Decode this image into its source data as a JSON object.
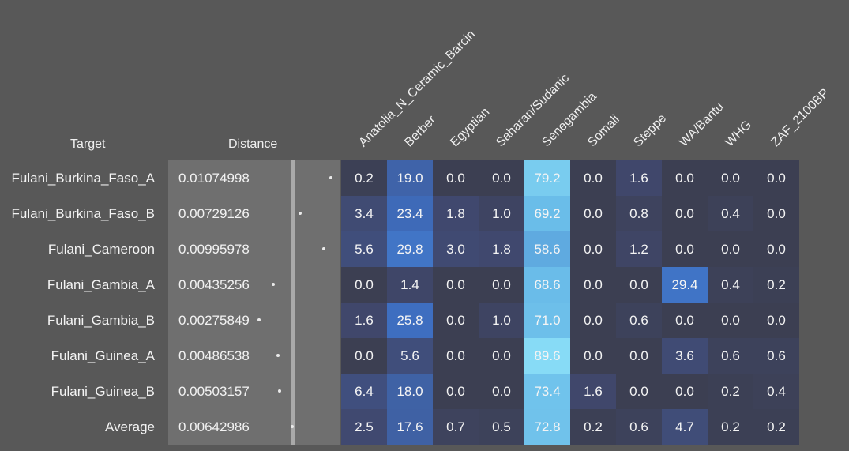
{
  "chart_data": {
    "type": "heatmap",
    "title": "",
    "row_header": "Target",
    "distance_header": "Distance",
    "columns": [
      "Anatolia_N_Ceramic_Barcin",
      "Berber",
      "Egyptian",
      "Saharan/Sudanic",
      "Senegambia",
      "Somali",
      "Steppe",
      "WA/Bantu",
      "WHG",
      "ZAF_2100BP"
    ],
    "rows": [
      {
        "target": "Fulani_Burkina_Faso_A",
        "distance_label": "0.01074998",
        "distance": 0.01074998,
        "values": [
          "0.2",
          "19.0",
          "0.0",
          "0.0",
          "79.2",
          "0.0",
          "1.6",
          "0.0",
          "0.0",
          "0.0"
        ]
      },
      {
        "target": "Fulani_Burkina_Faso_B",
        "distance_label": "0.00729126",
        "distance": 0.00729126,
        "values": [
          "3.4",
          "23.4",
          "1.8",
          "1.0",
          "69.2",
          "0.0",
          "0.8",
          "0.0",
          "0.4",
          "0.0"
        ]
      },
      {
        "target": "Fulani_Cameroon",
        "distance_label": "0.00995978",
        "distance": 0.00995978,
        "values": [
          "5.6",
          "29.8",
          "3.0",
          "1.8",
          "58.6",
          "0.0",
          "1.2",
          "0.0",
          "0.0",
          "0.0"
        ]
      },
      {
        "target": "Fulani_Gambia_A",
        "distance_label": "0.00435256",
        "distance": 0.00435256,
        "values": [
          "0.0",
          "1.4",
          "0.0",
          "0.0",
          "68.6",
          "0.0",
          "0.0",
          "29.4",
          "0.4",
          "0.2"
        ]
      },
      {
        "target": "Fulani_Gambia_B",
        "distance_label": "0.00275849",
        "distance": 0.00275849,
        "values": [
          "1.6",
          "25.8",
          "0.0",
          "1.0",
          "71.0",
          "0.0",
          "0.6",
          "0.0",
          "0.0",
          "0.0"
        ]
      },
      {
        "target": "Fulani_Guinea_A",
        "distance_label": "0.00486538",
        "distance": 0.00486538,
        "values": [
          "0.0",
          "5.6",
          "0.0",
          "0.0",
          "89.6",
          "0.0",
          "0.0",
          "3.6",
          "0.6",
          "0.6"
        ]
      },
      {
        "target": "Fulani_Guinea_B",
        "distance_label": "0.00503157",
        "distance": 0.00503157,
        "values": [
          "6.4",
          "18.0",
          "0.0",
          "0.0",
          "73.4",
          "1.6",
          "0.0",
          "0.0",
          "0.2",
          "0.4"
        ]
      },
      {
        "target": "Average",
        "distance_label": "0.00642986",
        "distance": 0.00642986,
        "values": [
          "2.5",
          "17.6",
          "0.7",
          "0.5",
          "72.8",
          "0.2",
          "0.6",
          "4.7",
          "0.2",
          "0.2"
        ]
      }
    ],
    "distance_range": [
      0,
      0.011
    ],
    "value_range": [
      0,
      100
    ]
  }
}
